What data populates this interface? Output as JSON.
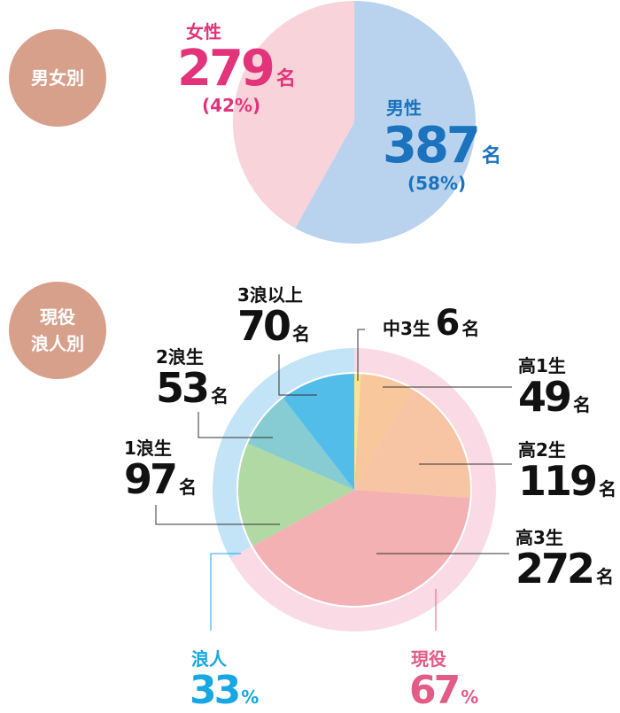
{
  "chart_data": [
    {
      "type": "pie",
      "badge": "男女別",
      "slices": [
        {
          "label": "男性",
          "value": 387,
          "unit": "名",
          "percent": "(58%)",
          "color": "#b9d3ee",
          "text_color": "#1b72bd"
        },
        {
          "label": "女性",
          "value": 279,
          "unit": "名",
          "percent": "(42%)",
          "color": "#f8d3da",
          "text_color": "#e3337a"
        }
      ]
    },
    {
      "type": "pie",
      "badge": [
        "現役",
        "浪人別"
      ],
      "inner_slices": [
        {
          "label": "中3生",
          "value": 6,
          "unit": "名",
          "color": "#fde28f"
        },
        {
          "label": "高1生",
          "value": 49,
          "unit": "名",
          "color": "#f8c79b"
        },
        {
          "label": "高2生",
          "value": 119,
          "unit": "名",
          "color": "#f7c4a4"
        },
        {
          "label": "高3生",
          "value": 272,
          "unit": "名",
          "color": "#f3b1b3"
        },
        {
          "label": "1浪生",
          "value": 97,
          "unit": "名",
          "color": "#b0d9a3"
        },
        {
          "label": "2浪生",
          "value": 53,
          "unit": "名",
          "color": "#87cbd3"
        },
        {
          "label": "3浪以上",
          "value": 70,
          "unit": "名",
          "color": "#53bdea"
        }
      ],
      "outer_ring": [
        {
          "label": "現役",
          "percent_value": "67",
          "percent_sign": "%",
          "color": "#fadbe5",
          "text_color": "#e35b87",
          "value": 67
        },
        {
          "label": "浪人",
          "percent_value": "33",
          "percent_sign": "%",
          "color": "#c3e3f7",
          "text_color": "#17a7e3",
          "value": 33
        }
      ]
    }
  ]
}
